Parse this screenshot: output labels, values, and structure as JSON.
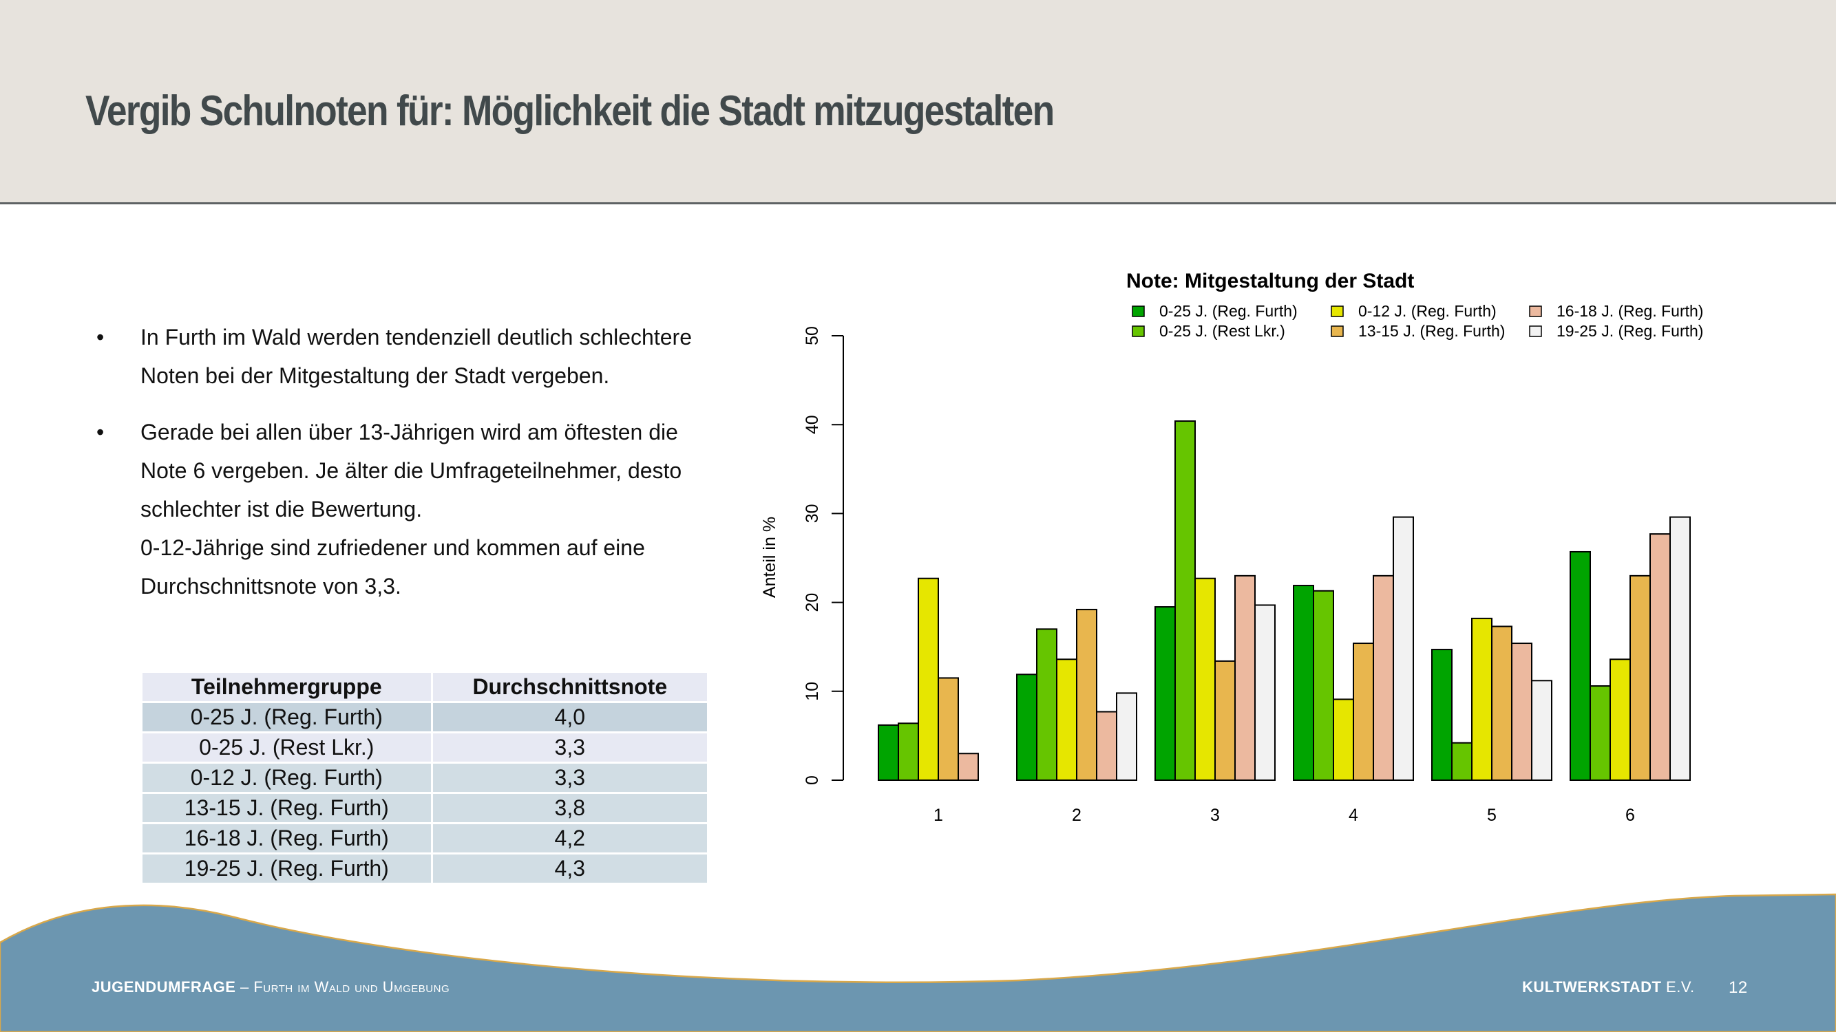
{
  "header": {
    "title": "Vergib Schulnoten für: Möglichkeit die Stadt mitzugestalten"
  },
  "bullets": [
    {
      "icon": "bullet-dot",
      "dot": "•",
      "lines": [
        "In Furth im Wald werden tendenziell deutlich schlechtere",
        "Noten bei der Mitgestaltung der Stadt vergeben."
      ]
    },
    {
      "icon": "bullet-dot",
      "dot": "•",
      "lines": [
        "Gerade bei allen über 13-Jährigen wird am öftesten die",
        "Note 6 vergeben. Je älter die Umfrageteilnehmer, desto",
        "schlechter ist die Bewertung.",
        "0-12-Jährige sind zufriedener und kommen auf eine",
        "Durchschnittsnote von 3,3."
      ]
    }
  ],
  "table": {
    "headers": [
      "Teilnehmergruppe",
      "Durchschnittsnote"
    ],
    "rows": [
      [
        "0-25 J. (Reg. Furth)",
        "4,0"
      ],
      [
        "0-25 J. (Rest Lkr.)",
        "3,3"
      ],
      [
        "0-12 J. (Reg. Furth)",
        "3,3"
      ],
      [
        "13-15 J. (Reg. Furth)",
        "3,8"
      ],
      [
        "16-18 J. (Reg. Furth)",
        "4,2"
      ],
      [
        "19-25 J. (Reg. Furth)",
        "4,3"
      ]
    ]
  },
  "chart_data": {
    "type": "bar",
    "title": "Note: Mitgestaltung der Stadt",
    "xlabel": "",
    "ylabel": "Anteil in %",
    "ylim": [
      0,
      50
    ],
    "yticks": [
      0,
      10,
      20,
      30,
      40,
      50
    ],
    "categories": [
      "1",
      "2",
      "3",
      "4",
      "5",
      "6"
    ],
    "legend_position": "top-right",
    "grid": false,
    "series": [
      {
        "name": "0-25 J. (Reg. Furth)",
        "color": "#00a400",
        "values": [
          6.2,
          11.9,
          19.5,
          21.9,
          14.7,
          25.7
        ]
      },
      {
        "name": "0-25 J. (Rest Lkr.)",
        "color": "#66c500",
        "values": [
          6.4,
          17.0,
          40.4,
          21.3,
          4.2,
          10.6
        ]
      },
      {
        "name": "0-12 J. (Reg. Furth)",
        "color": "#e6e600",
        "values": [
          22.7,
          13.6,
          22.7,
          9.1,
          18.2,
          13.6
        ]
      },
      {
        "name": "13-15 J. (Reg. Furth)",
        "color": "#e8b64e",
        "values": [
          11.5,
          19.2,
          13.4,
          15.4,
          17.3,
          23.0
        ]
      },
      {
        "name": "16-18 J. (Reg. Furth)",
        "color": "#ecb99f",
        "values": [
          3.0,
          7.7,
          23.0,
          23.0,
          15.4,
          27.7
        ]
      },
      {
        "name": "19-25 J. (Reg. Furth)",
        "color": "#f2f2f2",
        "values": [
          0,
          9.8,
          19.7,
          29.6,
          11.2,
          29.6
        ]
      }
    ]
  },
  "footer": {
    "survey_bold": "JUGENDUMFRAGE",
    "survey_rest": " – Furth im Wald und Umgebung",
    "org_bold": "KULTWERKSTADT",
    "org_suffix": " E.V.",
    "page_number": "12",
    "wave_color": "#6c96b0",
    "wave_edge_color": "#d9a84a"
  }
}
